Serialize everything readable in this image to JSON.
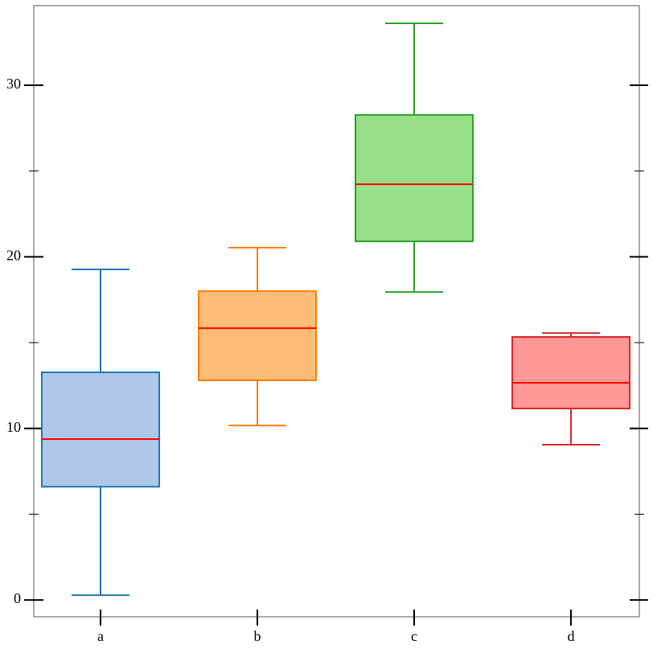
{
  "chart_data": {
    "type": "box",
    "categories": [
      "a",
      "b",
      "c",
      "d"
    ],
    "boxes": [
      {
        "whislo": 0.28,
        "q1": 6.6,
        "med": 9.38,
        "q3": 13.27,
        "whishi": 19.27,
        "fill": "#aec7e8",
        "color": "#1f77b4"
      },
      {
        "whislo": 10.17,
        "q1": 12.8,
        "med": 15.84,
        "q3": 18.0,
        "whishi": 20.53,
        "fill": "#ffbb78",
        "color": "#ff7f0e"
      },
      {
        "whislo": 17.95,
        "q1": 20.9,
        "med": 24.23,
        "q3": 28.27,
        "whishi": 33.61,
        "fill": "#98df8a",
        "color": "#2ca02c"
      },
      {
        "whislo": 9.05,
        "q1": 11.16,
        "med": 12.66,
        "q3": 15.33,
        "whishi": 15.56,
        "fill": "#ff9896",
        "color": "#d62728"
      }
    ],
    "median_color": "#ff0000",
    "ylim": [
      -0.98,
      34.64
    ],
    "yticks": [
      0,
      10,
      20,
      30
    ],
    "yminor_ticks": [
      5,
      15,
      25
    ]
  }
}
